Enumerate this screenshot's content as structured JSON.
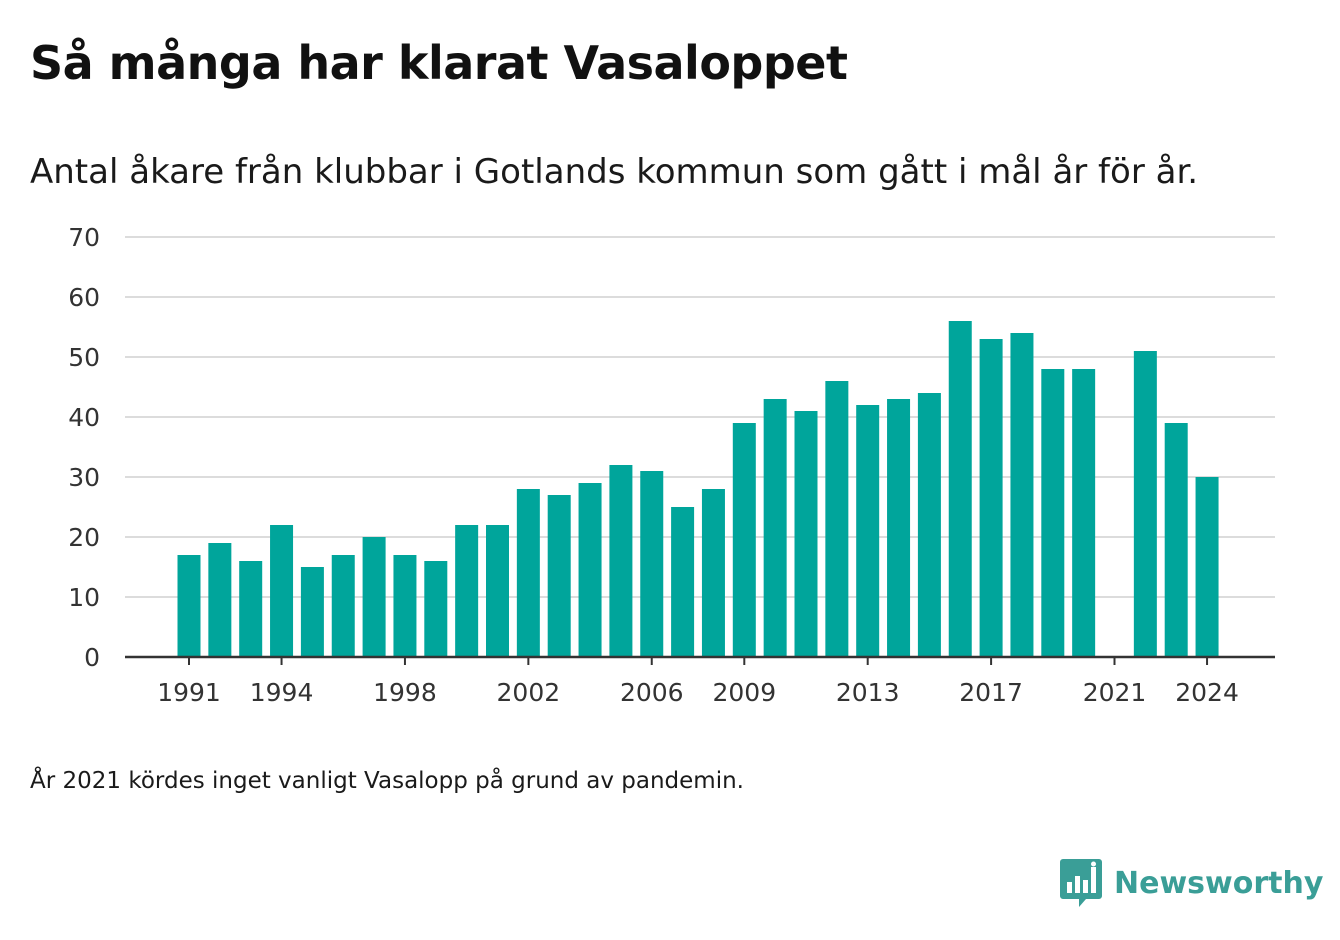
{
  "title": "Så många har klarat Vasaloppet",
  "subtitle": "Antal åkare från klubbar i Gotlands kommun som gått i mål år för år.",
  "footnote": "År 2021 kördes inget vanligt Vasalopp på grund av pandemin.",
  "brand": {
    "name": "Newsworthy",
    "color": "#3a9e97",
    "icon": "bar-chart-speech-bubble-icon"
  },
  "colors": {
    "bar": "#00a59b",
    "gridline": "#dcdcdc",
    "axis": "#333333"
  },
  "chart_data": {
    "type": "bar",
    "categories": [
      "1991",
      "1992",
      "1993",
      "1994",
      "1995",
      "1996",
      "1997",
      "1998",
      "1999",
      "2000",
      "2001",
      "2002",
      "2003",
      "2004",
      "2005",
      "2006",
      "2007",
      "2008",
      "2009",
      "2010",
      "2011",
      "2012",
      "2013",
      "2014",
      "2015",
      "2016",
      "2017",
      "2018",
      "2019",
      "2020",
      "2021",
      "2022",
      "2023",
      "2024"
    ],
    "values": [
      17,
      19,
      16,
      22,
      15,
      17,
      20,
      17,
      16,
      22,
      22,
      28,
      27,
      29,
      32,
      31,
      25,
      28,
      39,
      43,
      41,
      46,
      42,
      43,
      44,
      56,
      53,
      54,
      48,
      48,
      null,
      51,
      39,
      30
    ],
    "x_tick_labels": [
      "1991",
      "1994",
      "1998",
      "2002",
      "2006",
      "2009",
      "2013",
      "2017",
      "2021",
      "2024"
    ],
    "y_ticks": [
      0,
      10,
      20,
      30,
      40,
      50,
      60,
      70
    ],
    "ylim": [
      0,
      70
    ],
    "grid": true,
    "legend": "none",
    "xlabel": "",
    "ylabel": ""
  }
}
